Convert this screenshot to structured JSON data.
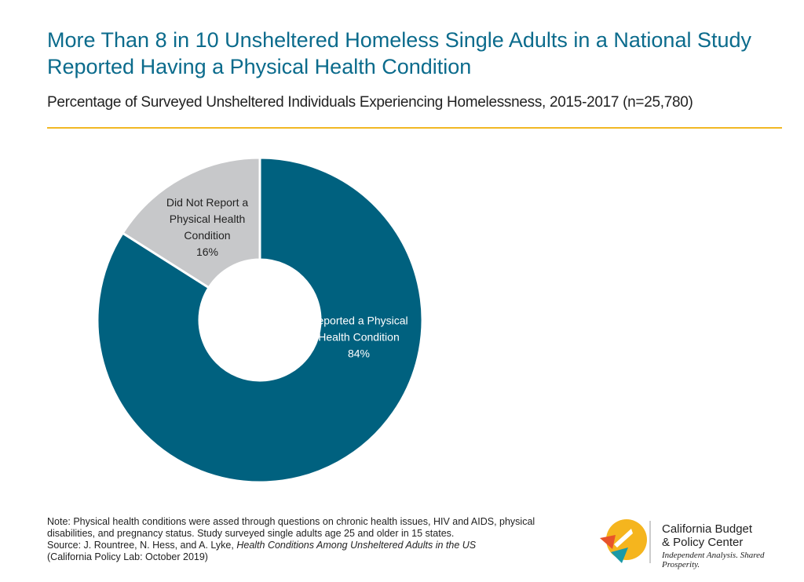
{
  "chart_data": {
    "type": "pie",
    "title": "More Than 8 in 10 Unsheltered Homeless Single Adults in a National Study Reported Having a Physical Health Condition",
    "subtitle": "Percentage of Surveyed Unsheltered Individuals Experiencing Homelessness, 2015-2017 (n=25,780)",
    "categories": [
      "Reported a Physical Health Condition",
      "Did Not Report a Physical Health Condition"
    ],
    "values": [
      84,
      16
    ],
    "value_labels": [
      "84%",
      "16%"
    ],
    "colors": [
      "#00617f",
      "#c7c8ca"
    ],
    "note": "Note: Physical health conditions were assed through questions on chronic health issues, HIV and AIDS, physical disabilities, and pregnancy status. Study surveyed single adults age 25 and older in 15 states.",
    "source": "Source: J. Rountree, N. Hess, and A. Lyke,",
    "source_title": "Health Conditions Among Unsheltered Adults in the US",
    "source_publisher": "(California Policy Lab: October 2019)"
  },
  "logo": {
    "name_lines": [
      "California Budget",
      "& Policy Center"
    ],
    "tagline": "Independent Analysis. Shared Prosperity."
  }
}
